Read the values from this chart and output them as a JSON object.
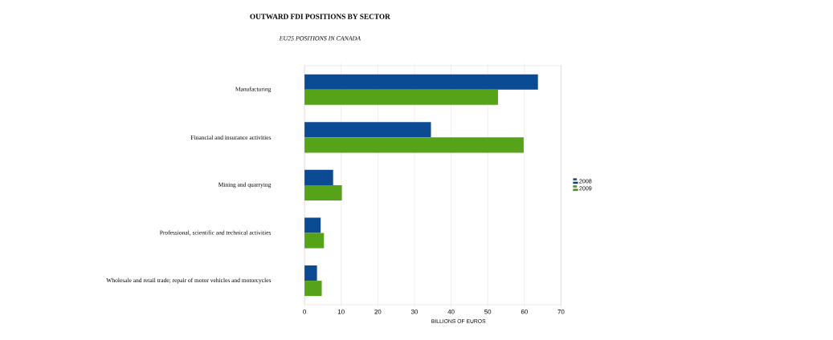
{
  "chart_data": {
    "type": "bar",
    "orientation": "horizontal",
    "title": "OUTWARD FDI POSITIONS BY SECTOR",
    "subtitle": "EU25 POSITIONS IN CANADA",
    "xlabel": "BILLIONS OF EUROS",
    "categories": [
      "Manufacturing",
      "Financial and insurance activities",
      "Mining and quarrying",
      "Professional, scientific and technical activities",
      "Wholesale and retail trade; repair of motor vehicles and motorcycles"
    ],
    "series": [
      {
        "name": "2008",
        "color": "#0a4b94",
        "values": [
          63.7,
          34.5,
          7.8,
          4.4,
          3.4
        ]
      },
      {
        "name": "2009",
        "color": "#56a319",
        "values": [
          52.8,
          59.8,
          10.2,
          5.3,
          4.7
        ]
      }
    ],
    "xlim": [
      0,
      70
    ],
    "xticks": [
      0,
      10,
      20,
      30,
      40,
      50,
      60,
      70
    ],
    "grid": "x",
    "legend": "right"
  }
}
